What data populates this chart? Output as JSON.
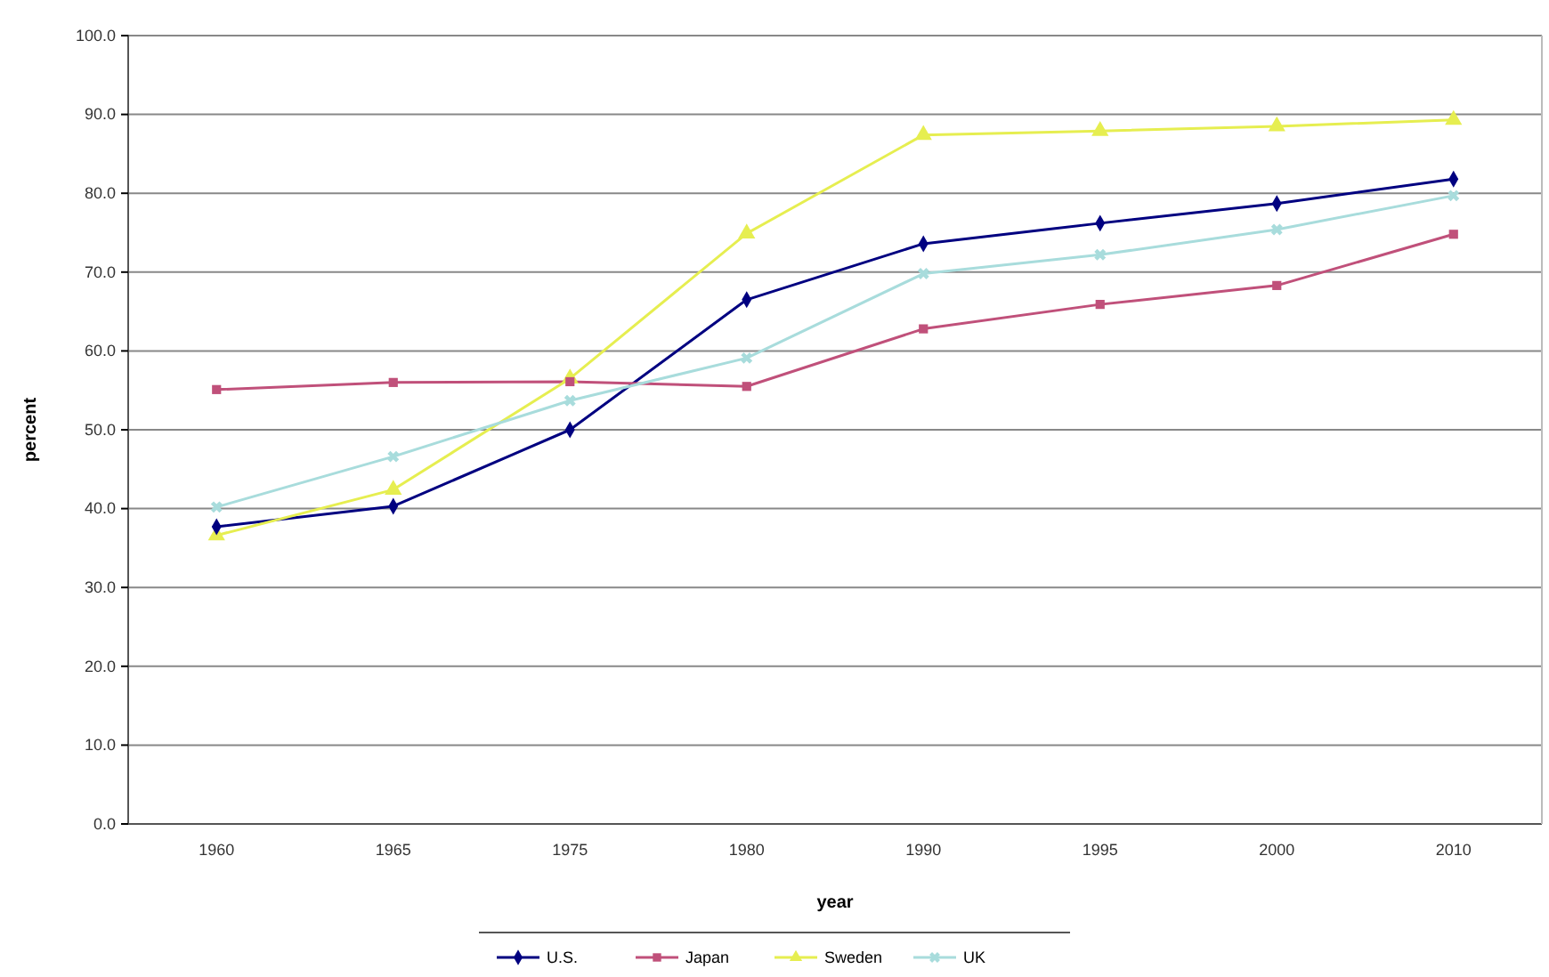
{
  "chart_data": {
    "type": "line",
    "xlabel": "year",
    "ylabel": "percent",
    "categories": [
      "1960",
      "1965",
      "1975",
      "1980",
      "1990",
      "1995",
      "2000",
      "2010"
    ],
    "ylim": [
      0,
      100
    ],
    "yticks": [
      {
        "value": 0,
        "label": "0.0"
      },
      {
        "value": 10,
        "label": "10.0"
      },
      {
        "value": 20,
        "label": "20.0"
      },
      {
        "value": 30,
        "label": "30.0"
      },
      {
        "value": 40,
        "label": "40.0"
      },
      {
        "value": 50,
        "label": "50.0"
      },
      {
        "value": 60,
        "label": "60.0"
      },
      {
        "value": 70,
        "label": "70.0"
      },
      {
        "value": 80,
        "label": "80.0"
      },
      {
        "value": 90,
        "label": "90.0"
      },
      {
        "value": 100,
        "label": "100.0"
      }
    ],
    "grid": "y",
    "legend": "bottom",
    "series": [
      {
        "name": "U.S.",
        "color": "#000080",
        "marker": "diamond",
        "values": [
          37.7,
          40.3,
          50,
          66.5,
          73.6,
          76.2,
          78.7,
          81.8
        ]
      },
      {
        "name": "Japan",
        "color": "#c0507a",
        "marker": "square",
        "values": [
          55.1,
          56,
          56.1,
          55.5,
          62.8,
          65.9,
          68.3,
          74.8
        ]
      },
      {
        "name": "Sweden",
        "color": "#e6ee50",
        "marker": "triangle",
        "values": [
          36.6,
          42.4,
          56.5,
          74.9,
          87.4,
          87.9,
          88.5,
          89.3
        ]
      },
      {
        "name": "UK",
        "color": "#a8dcdc",
        "marker": "cross",
        "values": [
          40.2,
          46.6,
          53.7,
          59.1,
          69.8,
          72.2,
          75.4,
          79.7
        ]
      }
    ]
  }
}
